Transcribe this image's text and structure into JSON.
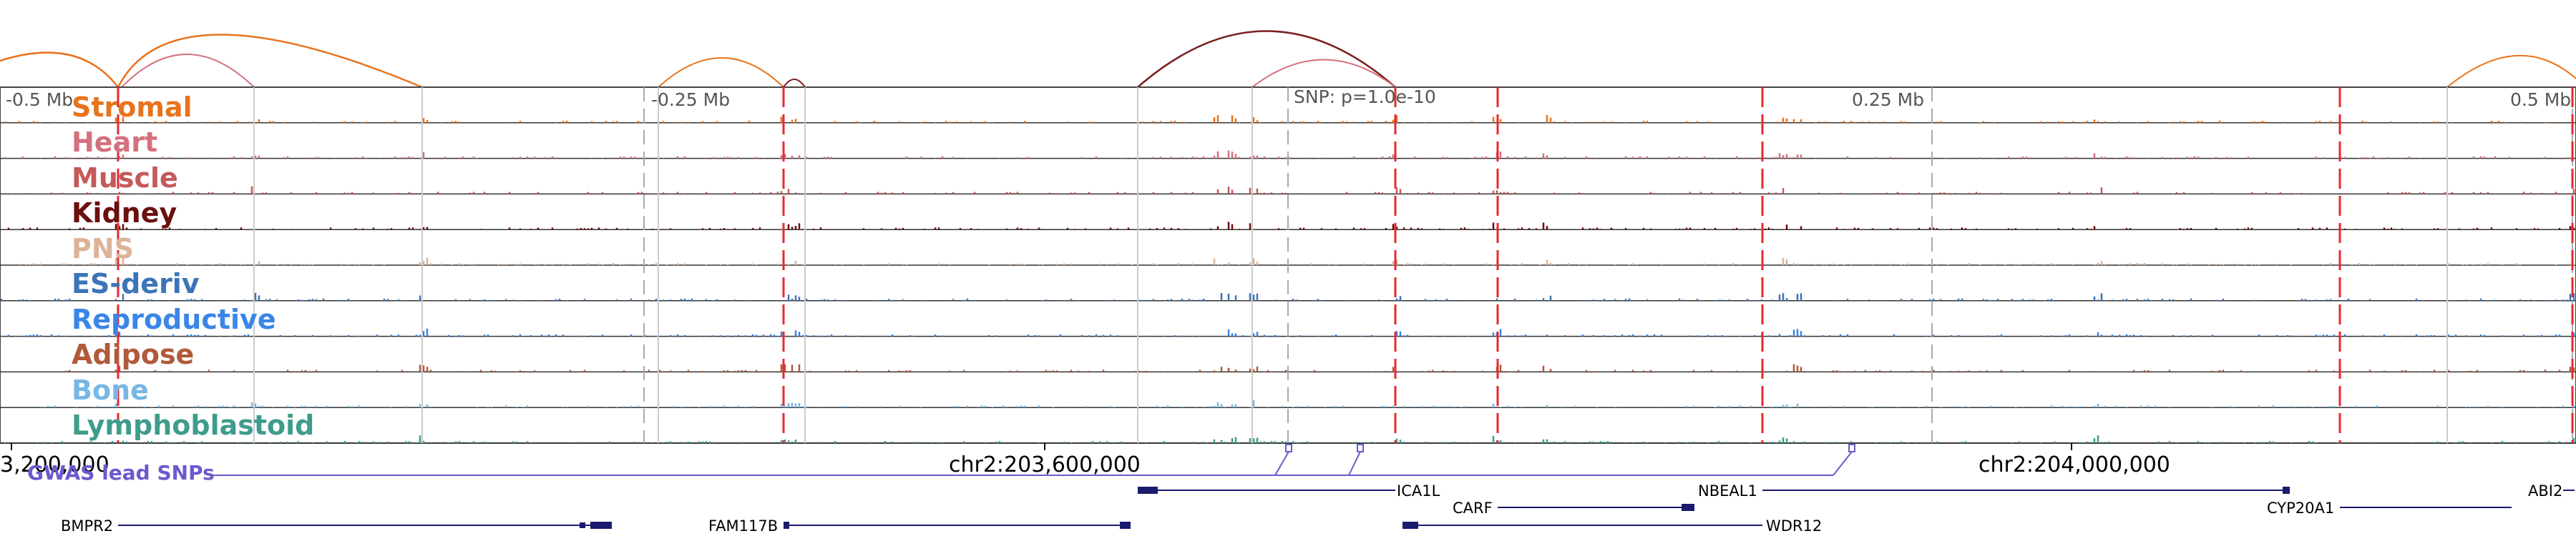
{
  "view": {
    "region_start_label": "3,200,000",
    "center_label": "chr2:203,600,000",
    "right_label": "chr2:204,000,000"
  },
  "distance_markers": [
    "-0.5 Mb",
    "-0.25 Mb",
    "0.25 Mb",
    "0.5 Mb"
  ],
  "snp_annotation": "SNP: p=1.0e-10",
  "gwas_label": "GWAS lead SNPs",
  "tracks": [
    {
      "name": "Stromal",
      "color": "#e8731c"
    },
    {
      "name": "Heart",
      "color": "#d4707e"
    },
    {
      "name": "Muscle",
      "color": "#c45a5a"
    },
    {
      "name": "Kidney",
      "color": "#6b0f0f"
    },
    {
      "name": "PNS",
      "color": "#dcb398"
    },
    {
      "name": "ES-deriv",
      "color": "#3b74b8"
    },
    {
      "name": "Reproductive",
      "color": "#3a86e8"
    },
    {
      "name": "Adipose",
      "color": "#b05a3a"
    },
    {
      "name": "Bone",
      "color": "#77b7e4"
    },
    {
      "name": "Lymphoblastoid",
      "color": "#3f9c8c"
    }
  ],
  "genes": [
    "BMPR2",
    "FAM117B",
    "ICA1L",
    "CARF",
    "WDR12",
    "NBEAL1",
    "CYP20A1",
    "ABI2"
  ],
  "colors": {
    "highlight_line": "#e8282f",
    "gene_model": "#1a1a6e",
    "gwas": "#6a5acd",
    "loop_orange": "#e8731c",
    "loop_pink": "#d4707e",
    "loop_dark": "#7a1f1f"
  }
}
